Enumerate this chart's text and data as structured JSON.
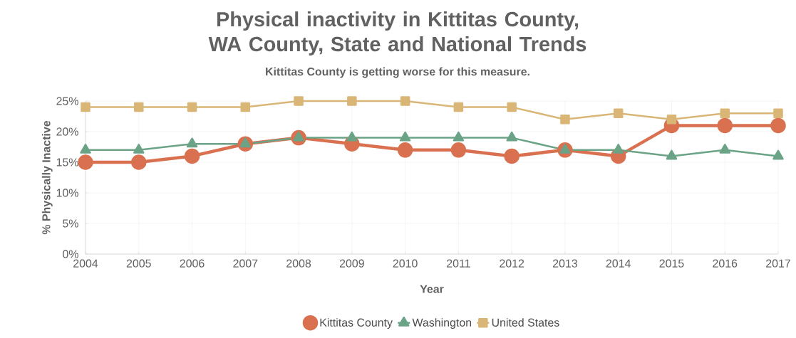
{
  "chart_data": {
    "type": "line",
    "title": "Physical inactivity in Kittitas County, WA County, State and National Trends",
    "subtitle": "Kittitas County is getting worse for this measure.",
    "xlabel": "Year",
    "ylabel": "% Physically Inactive",
    "categories": [
      "2004",
      "2005",
      "2006",
      "2007",
      "2008",
      "2009",
      "2010",
      "2011",
      "2012",
      "2013",
      "2014",
      "2015",
      "2016",
      "2017"
    ],
    "series": [
      {
        "name": "Kittitas County",
        "color": "#d9704f",
        "marker": "circle",
        "values": [
          15,
          15,
          16,
          18,
          19,
          18,
          17,
          17,
          16,
          17,
          16,
          21,
          21,
          21
        ]
      },
      {
        "name": "Washington",
        "color": "#6aa386",
        "marker": "triangle",
        "values": [
          17,
          17,
          18,
          18,
          19,
          19,
          19,
          19,
          19,
          17,
          17,
          16,
          17,
          16
        ]
      },
      {
        "name": "United States",
        "color": "#d9b676",
        "marker": "square",
        "values": [
          24,
          24,
          24,
          24,
          25,
          25,
          25,
          24,
          24,
          22,
          23,
          22,
          23,
          23
        ]
      }
    ],
    "ylim": [
      0,
      25
    ],
    "yticks": [
      {
        "value": 0,
        "label": "0%"
      },
      {
        "value": 5,
        "label": "5%"
      },
      {
        "value": 10,
        "label": "10%"
      },
      {
        "value": 15,
        "label": "15%"
      },
      {
        "value": 20,
        "label": "20%"
      },
      {
        "value": 25,
        "label": "25%"
      }
    ],
    "grid": true,
    "legend": "bottom",
    "line_style": "solid"
  }
}
